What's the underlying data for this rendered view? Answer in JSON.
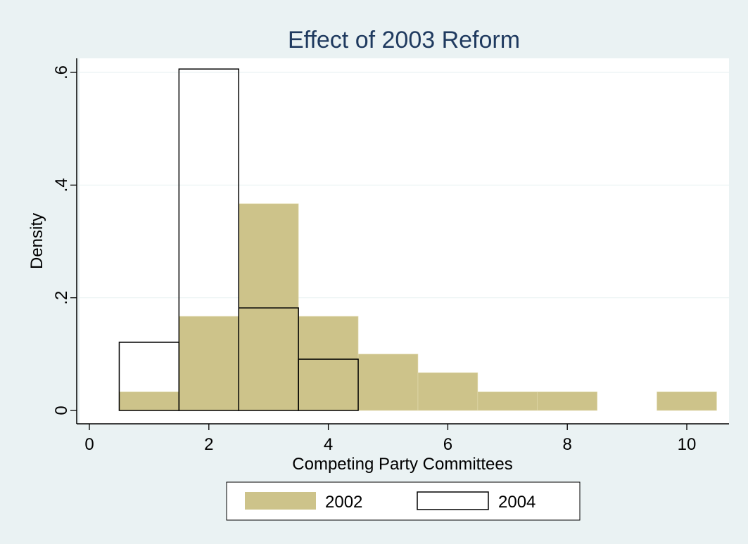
{
  "chart_data": {
    "type": "bar",
    "title": "Effect of 2003 Reform",
    "xlabel": "Competing Party Committees",
    "ylabel": "Density",
    "xlim": [
      -0.3,
      10.7
    ],
    "ylim": [
      0,
      0.65
    ],
    "xticks": [
      0,
      2,
      4,
      6,
      8,
      10
    ],
    "xtick_labels": [
      "0",
      "2",
      "4",
      "6",
      "8",
      "10"
    ],
    "yticks": [
      0,
      0.2,
      0.4,
      0.6
    ],
    "ytick_labels": [
      "0",
      ".2",
      ".4",
      ".6"
    ],
    "bin_width": 1,
    "grid": "horizontal",
    "legend_position": "bottom",
    "series": [
      {
        "name": "2002",
        "style": "filled",
        "color": "#cdc38a",
        "bins": [
          {
            "center": 1,
            "value": 0.033
          },
          {
            "center": 2,
            "value": 0.167
          },
          {
            "center": 3,
            "value": 0.367
          },
          {
            "center": 4,
            "value": 0.167
          },
          {
            "center": 5,
            "value": 0.1
          },
          {
            "center": 6,
            "value": 0.067
          },
          {
            "center": 7,
            "value": 0.033
          },
          {
            "center": 8,
            "value": 0.033
          },
          {
            "center": 10,
            "value": 0.033
          }
        ]
      },
      {
        "name": "2004",
        "style": "outline",
        "color": "#000000",
        "bins": [
          {
            "center": 1,
            "value": 0.121
          },
          {
            "center": 2,
            "value": 0.606
          },
          {
            "center": 3,
            "value": 0.182
          },
          {
            "center": 4,
            "value": 0.091
          }
        ]
      }
    ]
  }
}
